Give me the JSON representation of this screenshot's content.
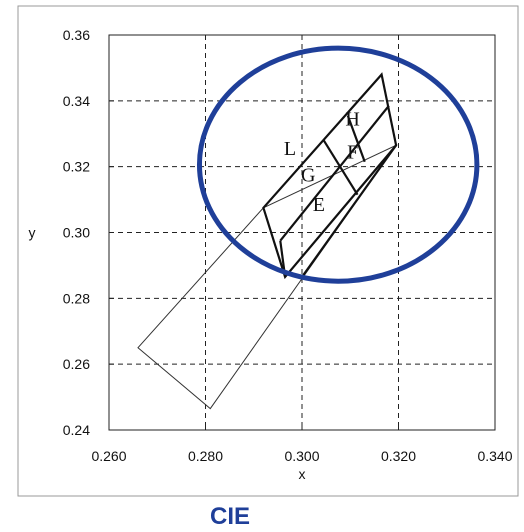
{
  "caption": "CIE",
  "colors": {
    "ellipse": "#1f3f99",
    "caption": "#1f3f99",
    "grid": "#222222",
    "lines": "#111111"
  },
  "chart_data": {
    "type": "diagram-plot",
    "xlabel": "x",
    "ylabel": "y",
    "xlim": [
      0.26,
      0.34
    ],
    "ylim": [
      0.24,
      0.36
    ],
    "x_ticks": [
      "0.260",
      "0.280",
      "0.300",
      "0.320",
      "0.340"
    ],
    "y_ticks": [
      "0.24",
      "0.26",
      "0.28",
      "0.30",
      "0.32",
      "0.34",
      "0.36"
    ],
    "grid": true,
    "grid_style": "dashed",
    "outer_quadrilateral": [
      [
        0.266,
        0.265
      ],
      [
        0.281,
        0.2465
      ],
      [
        0.3195,
        0.3265
      ],
      [
        0.292,
        0.3075
      ]
    ],
    "regions": {
      "outline": [
        [
          0.292,
          0.3075
        ],
        [
          0.3165,
          0.348
        ],
        [
          0.3195,
          0.3265
        ],
        [
          0.2965,
          0.2865
        ]
      ],
      "long_lines": [
        [
          [
            0.2955,
            0.2975
          ],
          [
            0.318,
            0.3385
          ]
        ],
        [
          [
            0.3,
            0.2865
          ],
          [
            0.3195,
            0.3265
          ]
        ]
      ],
      "cross_lines": [
        [
          [
            0.3045,
            0.328
          ],
          [
            0.3115,
            0.3115
          ]
        ],
        [
          [
            0.3095,
            0.3355
          ],
          [
            0.313,
            0.3215
          ]
        ]
      ],
      "extra_edge": [
        [
          0.2955,
          0.2975
        ],
        [
          0.2965,
          0.2865
        ]
      ]
    },
    "annotations": [
      {
        "text": "L",
        "x": 0.2975,
        "y": 0.3235
      },
      {
        "text": "H",
        "x": 0.3105,
        "y": 0.3325
      },
      {
        "text": "G",
        "x": 0.3013,
        "y": 0.3155
      },
      {
        "text": "F",
        "x": 0.3105,
        "y": 0.3225
      },
      {
        "text": "E",
        "x": 0.3035,
        "y": 0.3065
      }
    ],
    "ellipse": {
      "cx": 0.3075,
      "cy": 0.3206,
      "rx": 0.02875,
      "ry": 0.0354
    }
  }
}
